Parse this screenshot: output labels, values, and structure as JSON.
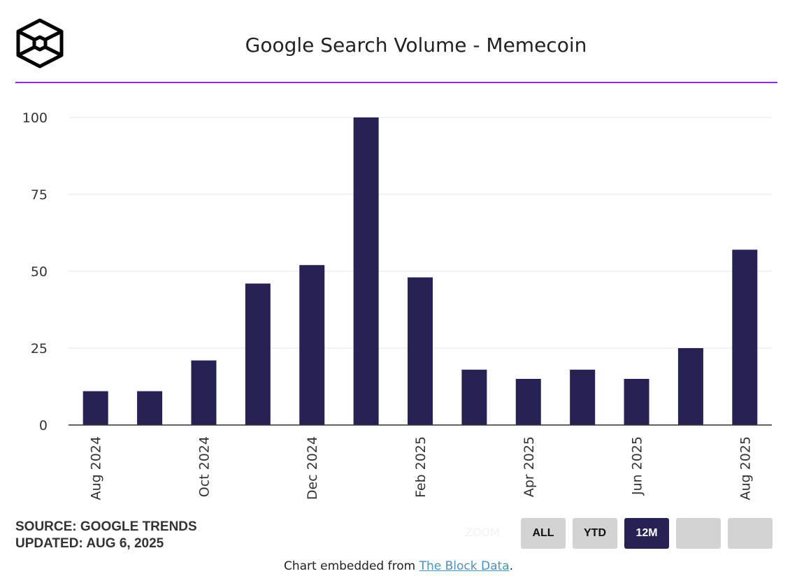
{
  "header": {
    "title": "Google Search Volume - Memecoin",
    "logo": "The Block"
  },
  "footer": {
    "source": "SOURCE: GOOGLE TRENDS",
    "updated": "UPDATED: AUG 6, 2025",
    "zoom_label": "ZOOM",
    "buttons": [
      {
        "label": "ALL",
        "active": false
      },
      {
        "label": "YTD",
        "active": false
      },
      {
        "label": "12M",
        "active": true
      },
      {
        "label": "",
        "active": false
      },
      {
        "label": "",
        "active": false
      }
    ],
    "embed_prefix": "Chart embedded from ",
    "embed_link": "The Block Data",
    "embed_suffix": "."
  },
  "colors": {
    "bar": "#262254",
    "accent": "#8a2be2",
    "grid": "#e6e6e6"
  },
  "chart_data": {
    "type": "bar",
    "title": "Google Search Volume - Memecoin",
    "categories": [
      "Aug 2024",
      "Sep 2024",
      "Oct 2024",
      "Nov 2024",
      "Dec 2024",
      "Jan 2025",
      "Feb 2025",
      "Mar 2025",
      "Apr 2025",
      "May 2025",
      "Jun 2025",
      "Jul 2025",
      "Aug 2025"
    ],
    "x_tick_labels": [
      "Aug 2024",
      "",
      "Oct 2024",
      "",
      "Dec 2024",
      "",
      "Feb 2025",
      "",
      "Apr 2025",
      "",
      "Jun 2025",
      "",
      "Aug 2025"
    ],
    "values": [
      11,
      11,
      21,
      46,
      52,
      100,
      48,
      18,
      15,
      18,
      15,
      25,
      57
    ],
    "y_ticks": [
      0,
      25,
      50,
      75,
      100
    ],
    "ylim": [
      0,
      100
    ],
    "xlabel": "",
    "ylabel": "",
    "grid": true
  }
}
